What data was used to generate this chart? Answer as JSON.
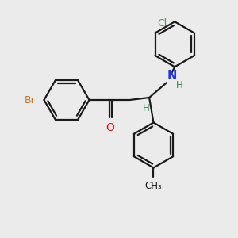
{
  "bg_color": "#ebebeb",
  "bond_color": "#1a1a1a",
  "O_color": "#ee1111",
  "N_color": "#2233ee",
  "Br_color": "#cc7722",
  "Cl_color": "#33aa33",
  "H_color": "#338844",
  "line_width": 1.6,
  "fig_size": [
    3.0,
    3.0
  ],
  "dpi": 100,
  "xlim": [
    0,
    10
  ],
  "ylim": [
    0,
    10
  ]
}
